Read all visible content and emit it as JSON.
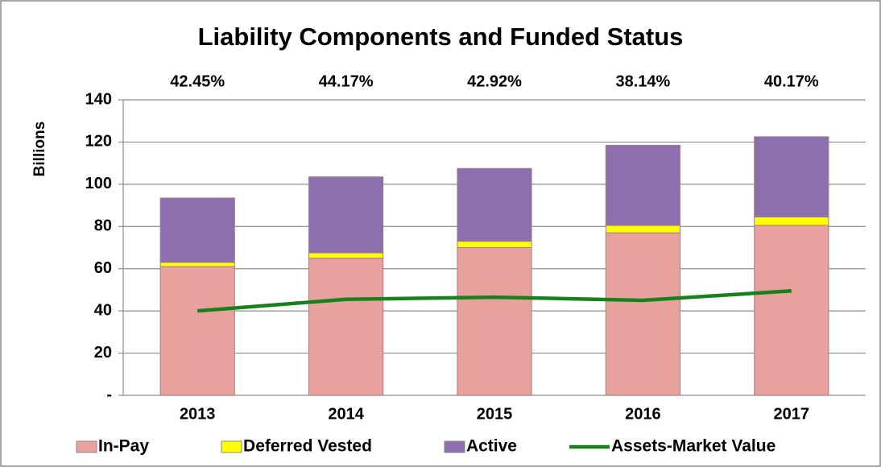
{
  "chart_data": {
    "type": "stacked_bar_line",
    "title": "Liability Components and Funded Status",
    "y_label": "Billions",
    "annotations": [
      "42.45%",
      "44.17%",
      "42.92%",
      "38.14%",
      "40.17%"
    ],
    "categories": [
      "2013",
      "2014",
      "2015",
      "2016",
      "2017"
    ],
    "series": [
      {
        "name": "In-Pay",
        "color": "#e8a19d",
        "kind": "bar",
        "values": [
          61,
          65,
          70,
          77,
          80.5
        ]
      },
      {
        "name": "Deferred Vested",
        "color": "#ffff00",
        "kind": "bar",
        "values": [
          2,
          2.5,
          3,
          3.5,
          4
        ]
      },
      {
        "name": "Active",
        "color": "#8b6fae",
        "kind": "bar",
        "values": [
          30.5,
          36,
          34.5,
          38,
          38
        ]
      },
      {
        "name": "Assets-Market Value",
        "color": "#18801c",
        "kind": "line",
        "values": [
          40,
          45.5,
          46.5,
          45,
          49.5
        ]
      }
    ],
    "ylim": [
      0,
      140
    ],
    "yticks": [
      {
        "value": 0,
        "label": "-"
      },
      20,
      40,
      60,
      80,
      100,
      120,
      140
    ],
    "grid": true,
    "legend": "bottom"
  }
}
